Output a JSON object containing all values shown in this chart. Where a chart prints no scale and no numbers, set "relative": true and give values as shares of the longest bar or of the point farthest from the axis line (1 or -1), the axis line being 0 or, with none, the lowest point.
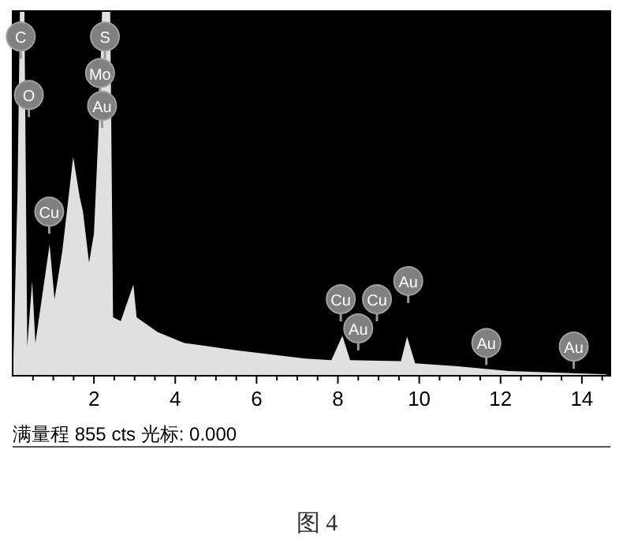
{
  "chart_data": {
    "type": "area",
    "relative": true,
    "color": "#e0e0e0",
    "tick_labels": "x",
    "x": [
      0.02,
      0.12,
      0.18,
      0.29,
      0.36,
      0.48,
      0.56,
      0.91,
      1.03,
      1.22,
      1.49,
      1.65,
      1.73,
      1.88,
      2.0,
      2.12,
      2.2,
      2.4,
      2.47,
      2.66,
      2.97,
      3.05,
      3.56,
      4.22,
      5.5,
      7.2,
      7.84,
      8.11,
      8.3,
      9.55,
      9.7,
      9.9,
      10.95,
      12.2,
      14.6
    ],
    "values": [
      0.05,
      0.5,
      1,
      1,
      0.08,
      0.26,
      0.09,
      0.36,
      0.21,
      0.34,
      0.6,
      0.49,
      0.45,
      0.31,
      0.39,
      0.69,
      1,
      1,
      0.16,
      0.15,
      0.25,
      0.16,
      0.12,
      0.09,
      0.07,
      0.047,
      0.043,
      0.11,
      0.043,
      0.04,
      0.107,
      0.034,
      0.026,
      0.013,
      0.004
    ],
    "xlim": [
      0,
      14.7
    ],
    "xticks": [
      {
        "value": 0.5,
        "label": null
      },
      {
        "value": 1,
        "label": null
      },
      {
        "value": 1.5,
        "label": null
      },
      2,
      {
        "value": 2.5,
        "label": null
      },
      {
        "value": 3,
        "label": null
      },
      {
        "value": 3.5,
        "label": null
      },
      4,
      {
        "value": 4.5,
        "label": null
      },
      {
        "value": 5,
        "label": null
      },
      {
        "value": 5.5,
        "label": null
      },
      6,
      {
        "value": 6.5,
        "label": null
      },
      {
        "value": 7,
        "label": null
      },
      {
        "value": 7.5,
        "label": null
      },
      8,
      {
        "value": 8.5,
        "label": null
      },
      {
        "value": 9,
        "label": null
      },
      {
        "value": 9.5,
        "label": null
      },
      10,
      {
        "value": 10.5,
        "label": null
      },
      {
        "value": 11,
        "label": null
      },
      {
        "value": 11.5,
        "label": null
      },
      12,
      {
        "value": 12.5,
        "label": null
      },
      {
        "value": 13,
        "label": null
      },
      {
        "value": 13.5,
        "label": null
      },
      14,
      {
        "value": 14.5,
        "label": null
      }
    ],
    "annotations": [
      {
        "text": "C",
        "x": 0.2,
        "y": 0.93
      },
      {
        "text": "O",
        "x": 0.4,
        "y": 0.77
      },
      {
        "text": "S",
        "x": 2.27,
        "y": 0.93
      },
      {
        "text": "Mo",
        "x": 2.15,
        "y": 0.83
      },
      {
        "text": "Au",
        "x": 2.2,
        "y": 0.74
      },
      {
        "text": "Cu",
        "x": 0.9,
        "y": 0.45
      },
      {
        "text": "Cu",
        "x": 8.07,
        "y": 0.21
      },
      {
        "text": "Cu",
        "x": 8.96,
        "y": 0.21
      },
      {
        "text": "Au",
        "x": 9.73,
        "y": 0.26
      },
      {
        "text": "Au",
        "x": 8.5,
        "y": 0.13
      },
      {
        "text": "Au",
        "x": 11.65,
        "y": 0.09
      },
      {
        "text": "Au",
        "x": 13.8,
        "y": 0.08
      },
      "满量程 855 cts 光标: 0.000",
      "图 4"
    ]
  }
}
